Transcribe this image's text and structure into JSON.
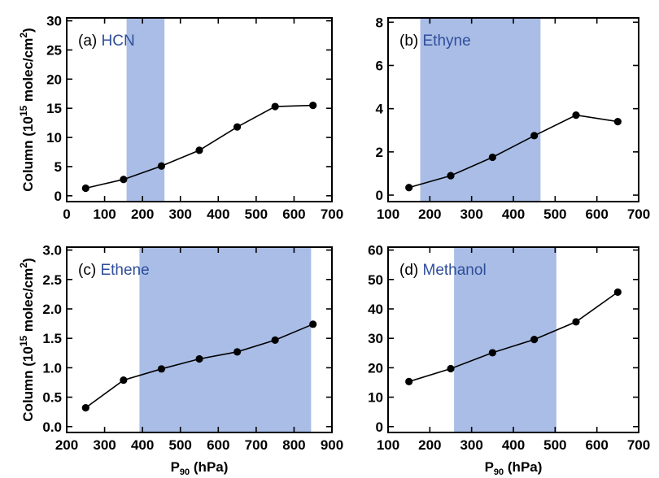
{
  "chart_data": [
    {
      "type": "line",
      "title": "(a) HCN",
      "title_prefix": "(a) ",
      "title_species": "HCN",
      "x": [
        50,
        150,
        250,
        350,
        450,
        550,
        650
      ],
      "y": [
        1.3,
        2.8,
        5.1,
        7.8,
        11.8,
        15.3,
        15.5
      ],
      "xlim": [
        0,
        700
      ],
      "ylim": [
        -1,
        30.5
      ],
      "xticks": [
        0,
        100,
        200,
        300,
        400,
        500,
        600,
        700
      ],
      "yticks": [
        0,
        5,
        10,
        15,
        20,
        25,
        30
      ],
      "shade": [
        158,
        258
      ],
      "ytick_decimals": 0
    },
    {
      "type": "line",
      "title": "(b) Ethyne",
      "title_prefix": "(b) ",
      "title_species": "Ethyne",
      "x": [
        150,
        250,
        350,
        450,
        550,
        650
      ],
      "y": [
        0.35,
        0.9,
        1.75,
        2.75,
        3.7,
        3.4
      ],
      "xlim": [
        100,
        700
      ],
      "ylim": [
        -0.3,
        8.2
      ],
      "xticks": [
        100,
        200,
        300,
        400,
        500,
        600,
        700
      ],
      "yticks": [
        0,
        2,
        4,
        6,
        8
      ],
      "shade": [
        177,
        465
      ],
      "ytick_decimals": 0
    },
    {
      "type": "line",
      "title": "(c) Ethene",
      "title_prefix": "(c) ",
      "title_species": "Ethene",
      "x": [
        250,
        350,
        450,
        550,
        650,
        750,
        850
      ],
      "y": [
        0.32,
        0.79,
        0.98,
        1.15,
        1.27,
        1.47,
        1.74
      ],
      "xlim": [
        200,
        900
      ],
      "ylim": [
        -0.1,
        3.05
      ],
      "xticks": [
        200,
        300,
        400,
        500,
        600,
        700,
        800,
        900
      ],
      "yticks": [
        0.0,
        0.5,
        1.0,
        1.5,
        2.0,
        2.5,
        3.0
      ],
      "shade": [
        392,
        845
      ],
      "ytick_decimals": 1
    },
    {
      "type": "line",
      "title": "(d) Methanol",
      "title_prefix": "(d) ",
      "title_species": "Methanol",
      "x": [
        150,
        250,
        350,
        450,
        550,
        650
      ],
      "y": [
        15.3,
        19.7,
        25.1,
        29.6,
        35.6,
        45.7
      ],
      "xlim": [
        100,
        700
      ],
      "ylim": [
        -2,
        61
      ],
      "xticks": [
        100,
        200,
        300,
        400,
        500,
        600,
        700
      ],
      "yticks": [
        0,
        10,
        20,
        30,
        40,
        50,
        60
      ],
      "shade": [
        258,
        503
      ],
      "ytick_decimals": 0
    }
  ],
  "ylabel": {
    "main": "Column (10",
    "exp": "15",
    "unit": " molec/cm",
    "unit_exp": "2",
    "close": ")"
  },
  "xlabel": {
    "main": "P",
    "sub": "90",
    "rest": " (hPa)"
  },
  "colors": {
    "shade": "#a9bde6",
    "line": "#000000",
    "species": "#2f4e9a"
  }
}
